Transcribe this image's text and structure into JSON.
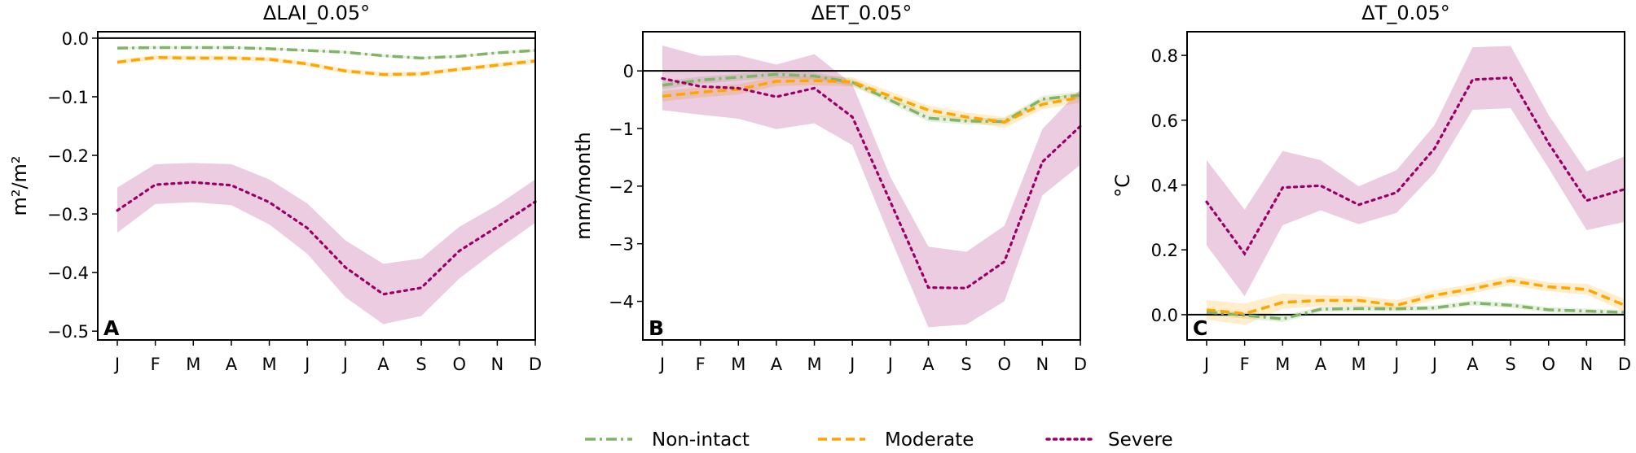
{
  "colors": {
    "Non-intact": "#82b366",
    "Moderate": "#ffa500",
    "Severe": "#990066"
  },
  "legend": {
    "items": [
      "Non-intact",
      "Moderate",
      "Severe"
    ],
    "placement": "bottom-center"
  },
  "chart_data": [
    {
      "type": "line",
      "panel_label": "A",
      "title": "ΔLAI_0.05°",
      "ylabel": "m²/m²",
      "xlabel": "",
      "categories": [
        "J",
        "F",
        "M",
        "A",
        "M",
        "J",
        "J",
        "A",
        "S",
        "O",
        "N",
        "D"
      ],
      "ylim": [
        -0.515,
        0.011
      ],
      "yticks": [
        0.0,
        -0.1,
        -0.2,
        -0.3,
        -0.4,
        -0.5
      ],
      "ytick_labels": [
        "0.0",
        "−0.1",
        "−0.2",
        "−0.3",
        "−0.4",
        "−0.5"
      ],
      "zero_line": true,
      "series": [
        {
          "name": "Non-intact",
          "style": "dashdot",
          "values": [
            -0.017,
            -0.016,
            -0.016,
            -0.016,
            -0.018,
            -0.021,
            -0.024,
            -0.03,
            -0.034,
            -0.031,
            -0.025,
            -0.021
          ],
          "lower": [
            -0.019,
            -0.018,
            -0.018,
            -0.018,
            -0.02,
            -0.023,
            -0.026,
            -0.032,
            -0.036,
            -0.033,
            -0.027,
            -0.023
          ],
          "upper": [
            -0.015,
            -0.014,
            -0.014,
            -0.014,
            -0.016,
            -0.019,
            -0.022,
            -0.028,
            -0.032,
            -0.029,
            -0.023,
            -0.019
          ]
        },
        {
          "name": "Moderate",
          "style": "dashed",
          "values": [
            -0.041,
            -0.033,
            -0.034,
            -0.034,
            -0.036,
            -0.044,
            -0.056,
            -0.062,
            -0.061,
            -0.053,
            -0.046,
            -0.039
          ],
          "lower": [
            -0.045,
            -0.037,
            -0.038,
            -0.038,
            -0.04,
            -0.048,
            -0.06,
            -0.066,
            -0.065,
            -0.057,
            -0.05,
            -0.043
          ],
          "upper": [
            -0.037,
            -0.029,
            -0.03,
            -0.03,
            -0.032,
            -0.04,
            -0.052,
            -0.058,
            -0.057,
            -0.049,
            -0.042,
            -0.035
          ]
        },
        {
          "name": "Severe",
          "style": "dotted",
          "values": [
            -0.294,
            -0.25,
            -0.246,
            -0.251,
            -0.28,
            -0.324,
            -0.391,
            -0.437,
            -0.426,
            -0.363,
            -0.322,
            -0.279
          ],
          "lower": [
            -0.332,
            -0.283,
            -0.28,
            -0.285,
            -0.318,
            -0.368,
            -0.442,
            -0.488,
            -0.474,
            -0.41,
            -0.361,
            -0.315
          ],
          "upper": [
            -0.255,
            -0.215,
            -0.213,
            -0.215,
            -0.241,
            -0.282,
            -0.345,
            -0.385,
            -0.376,
            -0.322,
            -0.285,
            -0.241
          ]
        }
      ]
    },
    {
      "type": "line",
      "panel_label": "B",
      "title": "ΔET_0.05°",
      "ylabel": "mm/month",
      "xlabel": "",
      "categories": [
        "J",
        "F",
        "M",
        "A",
        "M",
        "J",
        "J",
        "A",
        "S",
        "O",
        "N",
        "D"
      ],
      "ylim": [
        -4.67,
        0.68
      ],
      "yticks": [
        0,
        -1,
        -2,
        -3,
        -4
      ],
      "ytick_labels": [
        "0",
        "−1",
        "−2",
        "−3",
        "−4"
      ],
      "zero_line": true,
      "series": [
        {
          "name": "Non-intact",
          "style": "dashdot",
          "values": [
            -0.25,
            -0.16,
            -0.11,
            -0.06,
            -0.09,
            -0.2,
            -0.51,
            -0.82,
            -0.87,
            -0.88,
            -0.49,
            -0.42
          ],
          "lower": [
            -0.32,
            -0.22,
            -0.17,
            -0.12,
            -0.15,
            -0.26,
            -0.57,
            -0.88,
            -0.93,
            -0.94,
            -0.55,
            -0.48
          ],
          "upper": [
            -0.18,
            -0.1,
            -0.05,
            0.0,
            -0.03,
            -0.14,
            -0.45,
            -0.76,
            -0.81,
            -0.82,
            -0.43,
            -0.36
          ]
        },
        {
          "name": "Moderate",
          "style": "dashed",
          "values": [
            -0.44,
            -0.37,
            -0.32,
            -0.18,
            -0.17,
            -0.19,
            -0.44,
            -0.68,
            -0.8,
            -0.89,
            -0.58,
            -0.46
          ],
          "lower": [
            -0.53,
            -0.46,
            -0.41,
            -0.26,
            -0.25,
            -0.27,
            -0.52,
            -0.76,
            -0.88,
            -0.99,
            -0.67,
            -0.55
          ],
          "upper": [
            -0.35,
            -0.28,
            -0.23,
            -0.1,
            -0.09,
            -0.11,
            -0.36,
            -0.6,
            -0.72,
            -0.8,
            -0.49,
            -0.37
          ]
        },
        {
          "name": "Severe",
          "style": "dotted",
          "values": [
            -0.13,
            -0.27,
            -0.3,
            -0.45,
            -0.3,
            -0.8,
            -2.27,
            -3.76,
            -3.77,
            -3.31,
            -1.58,
            -0.96
          ],
          "lower": [
            -0.68,
            -0.76,
            -0.83,
            -1.01,
            -0.91,
            -1.29,
            -2.9,
            -4.45,
            -4.4,
            -4.0,
            -2.16,
            -1.63
          ],
          "upper": [
            0.44,
            0.26,
            0.27,
            0.11,
            0.29,
            -0.23,
            -1.84,
            -3.05,
            -3.14,
            -2.69,
            -1.01,
            -0.32
          ]
        }
      ]
    },
    {
      "type": "line",
      "panel_label": "C",
      "title": "ΔT_0.05°",
      "ylabel": "°C",
      "xlabel": "",
      "categories": [
        "J",
        "F",
        "M",
        "A",
        "M",
        "J",
        "J",
        "A",
        "S",
        "O",
        "N",
        "D"
      ],
      "ylim": [
        -0.078,
        0.873
      ],
      "yticks": [
        0.0,
        0.2,
        0.4,
        0.6,
        0.8
      ],
      "ytick_labels": [
        "0.0",
        "0.2",
        "0.4",
        "0.6",
        "0.8"
      ],
      "zero_line": true,
      "series": [
        {
          "name": "Non-intact",
          "style": "dashdot",
          "values": [
            0.008,
            -0.002,
            -0.013,
            0.017,
            0.019,
            0.018,
            0.021,
            0.036,
            0.029,
            0.015,
            0.011,
            0.007
          ],
          "lower": [
            -0.002,
            -0.012,
            -0.023,
            0.009,
            0.011,
            0.01,
            0.013,
            0.028,
            0.021,
            0.007,
            0.003,
            -0.001
          ],
          "upper": [
            0.018,
            0.008,
            -0.003,
            0.025,
            0.027,
            0.026,
            0.029,
            0.044,
            0.037,
            0.023,
            0.019,
            0.015
          ]
        },
        {
          "name": "Moderate",
          "style": "dashed",
          "values": [
            0.015,
            0.003,
            0.038,
            0.044,
            0.044,
            0.029,
            0.06,
            0.08,
            0.105,
            0.086,
            0.078,
            0.029
          ],
          "lower": [
            -0.015,
            -0.032,
            0.018,
            0.026,
            0.026,
            0.015,
            0.046,
            0.066,
            0.091,
            0.072,
            0.062,
            0.01
          ],
          "upper": [
            0.045,
            0.034,
            0.065,
            0.06,
            0.058,
            0.045,
            0.075,
            0.095,
            0.12,
            0.1,
            0.095,
            0.048
          ]
        },
        {
          "name": "Severe",
          "style": "dotted",
          "values": [
            0.348,
            0.188,
            0.392,
            0.398,
            0.339,
            0.377,
            0.513,
            0.725,
            0.731,
            0.529,
            0.352,
            0.387
          ],
          "lower": [
            0.214,
            0.057,
            0.276,
            0.322,
            0.279,
            0.314,
            0.438,
            0.632,
            0.637,
            0.452,
            0.261,
            0.286
          ],
          "upper": [
            0.477,
            0.324,
            0.505,
            0.477,
            0.396,
            0.446,
            0.585,
            0.825,
            0.829,
            0.616,
            0.442,
            0.488
          ]
        }
      ]
    }
  ]
}
